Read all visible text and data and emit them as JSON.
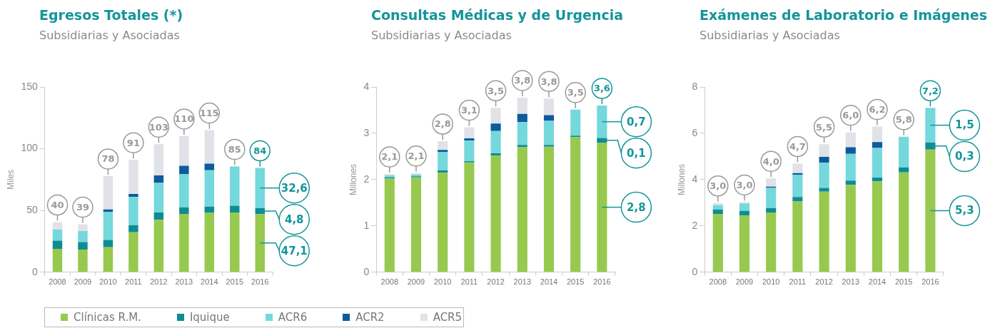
{
  "chart_data": [
    {
      "type": "bar",
      "stacked": true,
      "title": "Egresos Totales (*)",
      "subtitle": "Subsidiarias y Asociadas",
      "ylabel": "Miles",
      "categories": [
        "2008",
        "2009",
        "2010",
        "2011",
        "2012",
        "2013",
        "2014",
        "2015",
        "2016"
      ],
      "ylim": [
        0,
        150
      ],
      "yticks": [
        0,
        50,
        100,
        150
      ],
      "legend": "bottom",
      "totals": [
        "40",
        "39",
        "78",
        "91",
        "103",
        "110",
        "115",
        "85",
        "84"
      ],
      "series": [
        {
          "name": "Clínicas R.M.",
          "color": "#97c94f",
          "values": [
            19,
            18.4,
            20.2,
            32.4,
            42.4,
            47.2,
            48.4,
            48.4,
            47.1
          ],
          "value_labels": [
            null,
            null,
            null,
            null,
            null,
            null,
            null,
            null,
            "47,1"
          ]
        },
        {
          "name": "Iquique",
          "color": "#0e8c94",
          "values": [
            6.6,
            6,
            6,
            5.8,
            6,
            5.4,
            4.8,
            5.4,
            4.8
          ],
          "value_labels": [
            null,
            null,
            null,
            null,
            null,
            null,
            null,
            null,
            "4,8"
          ]
        },
        {
          "name": "ACR6",
          "color": "#74d8dd",
          "values": [
            9,
            9,
            22.8,
            22.8,
            24,
            27,
            29.4,
            31.8,
            32.6
          ],
          "value_labels": [
            null,
            null,
            null,
            null,
            null,
            null,
            null,
            null,
            "32,6"
          ]
        },
        {
          "name": "ACR2",
          "color": "#0d5a9c",
          "values": [
            null,
            null,
            1.8,
            2.4,
            6,
            6.6,
            5.4,
            null,
            null
          ]
        },
        {
          "name": "ACR5",
          "color": "#e1e2e7",
          "values": [
            6,
            5.4,
            27,
            27.6,
            25.2,
            24,
            27,
            null,
            null
          ]
        }
      ]
    },
    {
      "type": "bar",
      "stacked": true,
      "title": "Consultas Médicas y de Urgencia",
      "subtitle": "Subsidiarias y Asociadas",
      "ylabel": "Millones",
      "categories": [
        "2008",
        "2009",
        "2010",
        "2011",
        "2012",
        "2013",
        "2014",
        "2015",
        "2016"
      ],
      "ylim": [
        0,
        4
      ],
      "yticks": [
        0,
        1,
        2,
        3,
        4
      ],
      "totals": [
        "2,1",
        "2,1",
        "2,8",
        "3,1",
        "3,5",
        "3,8",
        "3,8",
        "3,5",
        "3,6"
      ],
      "series": [
        {
          "color": "#97c94f",
          "values": [
            2.02,
            2.05,
            2.15,
            2.37,
            2.52,
            2.7,
            2.71,
            2.92,
            2.8
          ],
          "value_labels": [
            null,
            null,
            null,
            null,
            null,
            null,
            null,
            null,
            "2,8"
          ]
        },
        {
          "color": "#0e8c94",
          "values": [
            0.03,
            0.02,
            0.05,
            0.03,
            0.05,
            0.05,
            0.04,
            0.03,
            0.1
          ],
          "value_labels": [
            null,
            null,
            null,
            null,
            null,
            null,
            null,
            null,
            "0,1"
          ]
        },
        {
          "color": "#74d8dd",
          "values": [
            0.04,
            0.04,
            0.4,
            0.44,
            0.48,
            0.49,
            0.52,
            0.56,
            0.7
          ],
          "value_labels": [
            null,
            null,
            null,
            null,
            null,
            null,
            null,
            null,
            "0,7"
          ]
        },
        {
          "color": "#0d5a9c",
          "values": [
            null,
            null,
            0.04,
            0.05,
            0.16,
            0.18,
            0.12,
            null,
            null
          ]
        },
        {
          "color": "#e1e2e7",
          "values": [
            0.03,
            0.03,
            0.19,
            0.24,
            0.34,
            0.35,
            0.36,
            null,
            null
          ]
        }
      ]
    },
    {
      "type": "bar",
      "stacked": true,
      "title": "Exámenes de Laboratorio e Imágenes",
      "subtitle": "Subsidiarias y Asociadas",
      "ylabel": "Millones",
      "categories": [
        "2008",
        "2009",
        "2010",
        "2011",
        "2012",
        "2013",
        "2014",
        "2015",
        "2016"
      ],
      "ylim": [
        0,
        8
      ],
      "yticks": [
        0,
        2,
        4,
        6,
        8
      ],
      "totals": [
        "3,0",
        "3,0",
        "4,0",
        "4,7",
        "5,5",
        "6,0",
        "6,2",
        "5,8",
        "7,2"
      ],
      "series": [
        {
          "color": "#97c94f",
          "values": [
            2.52,
            2.45,
            2.58,
            3.06,
            3.48,
            3.77,
            3.93,
            4.31,
            5.3
          ],
          "value_labels": [
            null,
            null,
            null,
            null,
            null,
            null,
            null,
            null,
            "5,3"
          ]
        },
        {
          "color": "#0e8c94",
          "values": [
            0.19,
            0.2,
            0.19,
            0.19,
            0.16,
            0.19,
            0.16,
            0.22,
            0.3
          ],
          "value_labels": [
            null,
            null,
            null,
            null,
            null,
            null,
            null,
            null,
            "0,3"
          ]
        },
        {
          "color": "#74d8dd",
          "values": [
            0.19,
            0.32,
            0.87,
            0.96,
            1.09,
            1.15,
            1.28,
            1.32,
            1.5
          ],
          "value_labels": [
            null,
            null,
            null,
            null,
            null,
            null,
            null,
            null,
            "1,5"
          ]
        },
        {
          "color": "#0d5a9c",
          "values": [
            null,
            null,
            0.06,
            0.07,
            0.25,
            0.29,
            0.25,
            null,
            null
          ]
        },
        {
          "color": "#e1e2e7",
          "values": [
            0.09,
            0.06,
            0.35,
            0.41,
            0.55,
            0.64,
            0.67,
            null,
            null
          ]
        }
      ]
    }
  ]
}
